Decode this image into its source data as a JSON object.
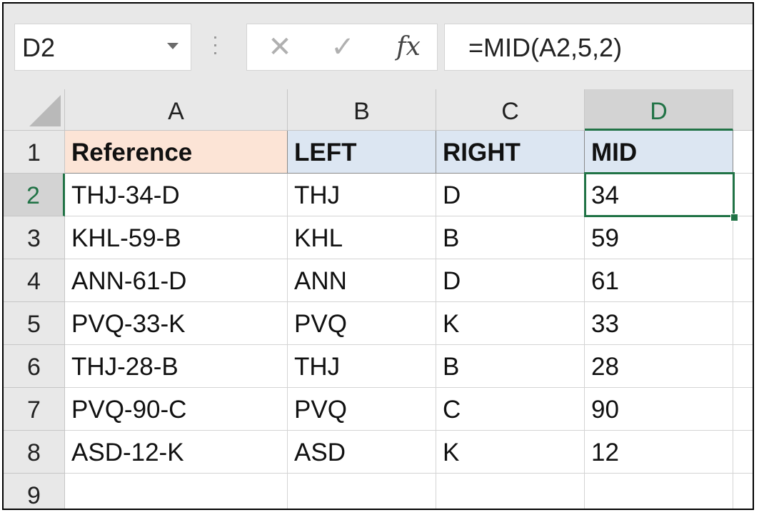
{
  "name_box": {
    "value": "D2"
  },
  "formula_bar": {
    "cancel_icon": "close-icon",
    "enter_icon": "check-icon",
    "fx_label": "fx",
    "formula": "=MID(A2,5,2)"
  },
  "colors": {
    "accent": "#217346",
    "reference_header_bg": "#fce4d6",
    "other_header_bg": "#dce6f2"
  },
  "sheet": {
    "active_cell": "D2",
    "columns": [
      "A",
      "B",
      "C",
      "D"
    ],
    "rows": [
      "1",
      "2",
      "3",
      "4",
      "5",
      "6",
      "7",
      "8",
      "9"
    ],
    "cells": [
      [
        "Reference",
        "LEFT",
        "RIGHT",
        "MID"
      ],
      [
        "THJ-34-D",
        "THJ",
        "D",
        "34"
      ],
      [
        "KHL-59-B",
        "KHL",
        "B",
        "59"
      ],
      [
        "ANN-61-D",
        "ANN",
        "D",
        "61"
      ],
      [
        "PVQ-33-K",
        "PVQ",
        "K",
        "33"
      ],
      [
        "THJ-28-B",
        "THJ",
        "B",
        "28"
      ],
      [
        "PVQ-90-C",
        "PVQ",
        "C",
        "90"
      ],
      [
        "ASD-12-K",
        "ASD",
        "K",
        "12"
      ],
      [
        "",
        "",
        "",
        ""
      ]
    ]
  }
}
